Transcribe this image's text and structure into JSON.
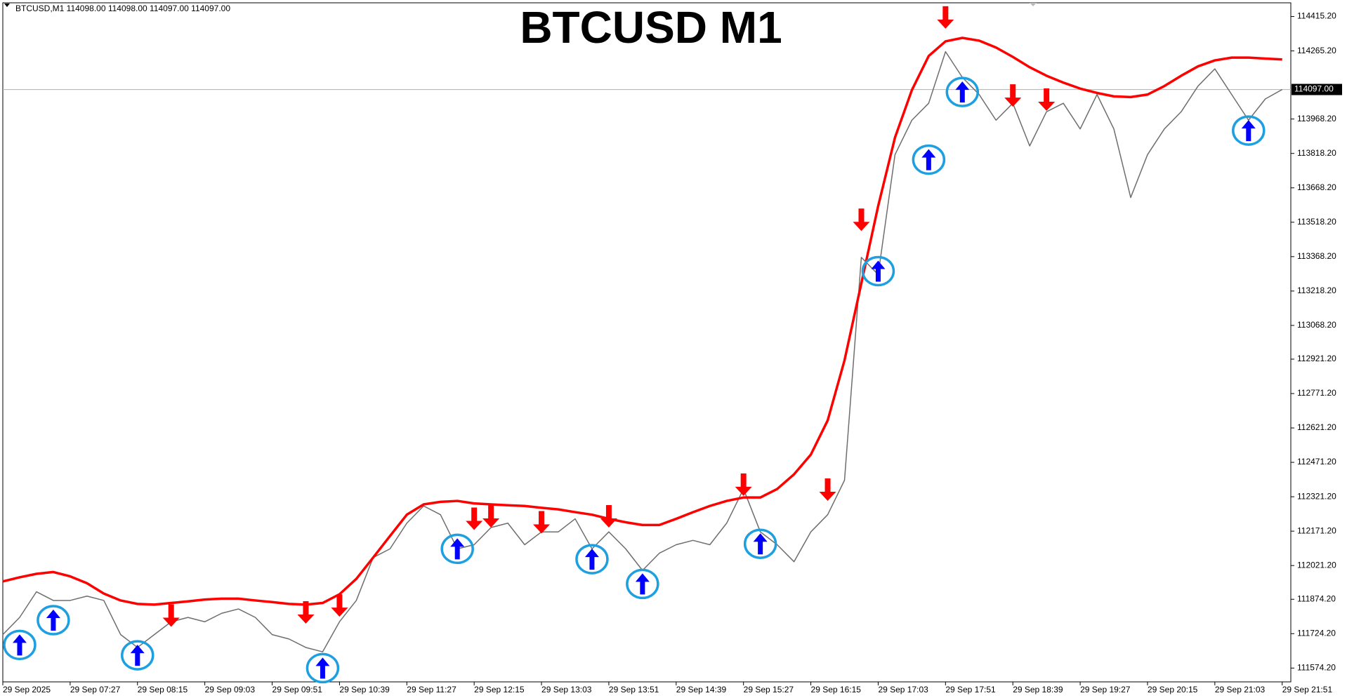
{
  "chart_data": {
    "type": "line",
    "header": "BTCUSD,M1  114098.00 114098.00 114097.00 114097.00",
    "title": "BTCUSD M1",
    "categories": [
      "29 Sep 2025",
      null,
      null,
      null,
      "29 Sep 07:27",
      null,
      null,
      null,
      "29 Sep 08:15",
      null,
      null,
      null,
      "29 Sep 09:03",
      null,
      null,
      null,
      "29 Sep 09:51",
      null,
      null,
      null,
      "29 Sep 10:39",
      null,
      null,
      null,
      "29 Sep 11:27",
      null,
      null,
      null,
      "29 Sep 12:15",
      null,
      null,
      null,
      "29 Sep 13:03",
      null,
      null,
      null,
      "29 Sep 13:51",
      null,
      null,
      null,
      "29 Sep 14:39",
      null,
      null,
      null,
      "29 Sep 15:27",
      null,
      null,
      null,
      "29 Sep 16:15",
      null,
      null,
      null,
      "29 Sep 17:03",
      null,
      null,
      null,
      "29 Sep 17:51",
      null,
      null,
      null,
      "29 Sep 18:39",
      null,
      null,
      null,
      "29 Sep 19:27",
      null,
      null,
      null,
      "29 Sep 20:15",
      null,
      null,
      null,
      "29 Sep 21:03",
      null,
      null,
      null,
      "29 Sep 21:51"
    ],
    "series": [
      {
        "marker": "line",
        "color": "#6e6e6e",
        "values": [
          111720,
          111795,
          111907,
          111869,
          111869,
          111888,
          111869,
          111720,
          111664,
          111720,
          111776,
          111795,
          111776,
          111813,
          111832,
          111795,
          111720,
          111701,
          111664,
          111645,
          111776,
          111869,
          112056,
          112094,
          112206,
          112281,
          112243,
          112094,
          112112,
          112187,
          112206,
          112112,
          112168,
          112168,
          112225,
          112094,
          112168,
          112094,
          112000,
          112075,
          112112,
          112131,
          112112,
          112206,
          112355,
          112168,
          112112,
          112038,
          112168,
          112243,
          112393,
          113365,
          113290,
          113813,
          113963,
          114037,
          114262,
          114150,
          114075,
          113963,
          114037,
          113851,
          114000,
          114037,
          113925,
          114075,
          113925,
          113626,
          113813,
          113925,
          114000,
          114112,
          114187,
          114075,
          113963,
          114056,
          114097
        ]
      },
      {
        "marker": "line",
        "color": "#ff0000",
        "values": [
          111952,
          111970,
          111985,
          111993,
          111974,
          111944,
          111899,
          111869,
          111854,
          111851,
          111858,
          111865,
          111873,
          111877,
          111877,
          111869,
          111862,
          111854,
          111851,
          111858,
          111896,
          111963,
          112056,
          112150,
          112243,
          112288,
          112299,
          112303,
          112292,
          112288,
          112284,
          112281,
          112273,
          112266,
          112254,
          112243,
          112225,
          112210,
          112198,
          112198,
          112225,
          112254,
          112281,
          112303,
          112318,
          112318,
          112355,
          112419,
          112505,
          112654,
          112916,
          113252,
          113589,
          113888,
          114094,
          114243,
          114307,
          114322,
          114310,
          114280,
          114239,
          114194,
          114157,
          114127,
          114101,
          114082,
          114067,
          114064,
          114075,
          114112,
          114157,
          114198,
          114224,
          114236,
          114236,
          114232,
          114228
        ]
      },
      {
        "marker": "arrow-up",
        "color": "#0000ff",
        "values": [
          null,
          111675,
          null,
          111783,
          null,
          null,
          null,
          null,
          111630,
          null,
          null,
          null,
          null,
          null,
          null,
          null,
          null,
          null,
          null,
          111574,
          null,
          null,
          null,
          null,
          null,
          null,
          null,
          112094,
          null,
          null,
          null,
          null,
          null,
          null,
          null,
          112049,
          null,
          null,
          111941,
          null,
          null,
          null,
          null,
          null,
          null,
          112116,
          null,
          null,
          null,
          null,
          null,
          null,
          113305,
          null,
          null,
          113791,
          null,
          114086,
          null,
          null,
          null,
          null,
          null,
          null,
          null,
          null,
          null,
          null,
          null,
          null,
          null,
          null,
          null,
          null,
          113918,
          null,
          null
        ]
      },
      {
        "marker": "arrow-down",
        "color": "#ff0000",
        "values": [
          null,
          null,
          null,
          null,
          null,
          null,
          null,
          null,
          null,
          null,
          111803,
          null,
          null,
          null,
          null,
          null,
          null,
          null,
          111817,
          null,
          111847,
          null,
          null,
          null,
          null,
          null,
          null,
          null,
          112225,
          112236,
          null,
          null,
          112210,
          null,
          null,
          null,
          112236,
          null,
          null,
          null,
          null,
          null,
          null,
          null,
          112374,
          null,
          null,
          null,
          null,
          112352,
          null,
          113529,
          null,
          null,
          null,
          null,
          114411,
          null,
          null,
          null,
          114071,
          null,
          114053,
          null,
          null,
          null,
          null,
          null,
          null,
          null,
          null,
          null,
          null,
          null,
          null,
          null,
          null
        ]
      }
    ],
    "ylim": [
      111514,
      114475
    ],
    "yticks": [
      {
        "value": 114415.2,
        "label": "114415.20"
      },
      {
        "value": 114265.2,
        "label": "114265.20"
      },
      {
        "value": 113968.2,
        "label": "113968.20"
      },
      {
        "value": 113818.2,
        "label": "113818.20"
      },
      {
        "value": 113668.2,
        "label": "113668.20"
      },
      {
        "value": 113518.2,
        "label": "113518.20"
      },
      {
        "value": 113368.2,
        "label": "113368.20"
      },
      {
        "value": 113218.2,
        "label": "113218.20"
      },
      {
        "value": 113068.2,
        "label": "113068.20"
      },
      {
        "value": 112921.2,
        "label": "112921.20"
      },
      {
        "value": 112771.2,
        "label": "112771.20"
      },
      {
        "value": 112621.2,
        "label": "112621.20"
      },
      {
        "value": 112471.2,
        "label": "112471.20"
      },
      {
        "value": 112321.2,
        "label": "112321.20"
      },
      {
        "value": 112171.2,
        "label": "112171.20"
      },
      {
        "value": 112021.2,
        "label": "112021.20"
      },
      {
        "value": 111874.2,
        "label": "111874.20"
      },
      {
        "value": 111724.2,
        "label": "111724.20"
      },
      {
        "value": 111574.2,
        "label": "111574.20"
      }
    ],
    "current_price": {
      "value": 114097,
      "label": "114097.00"
    },
    "grid": false
  }
}
